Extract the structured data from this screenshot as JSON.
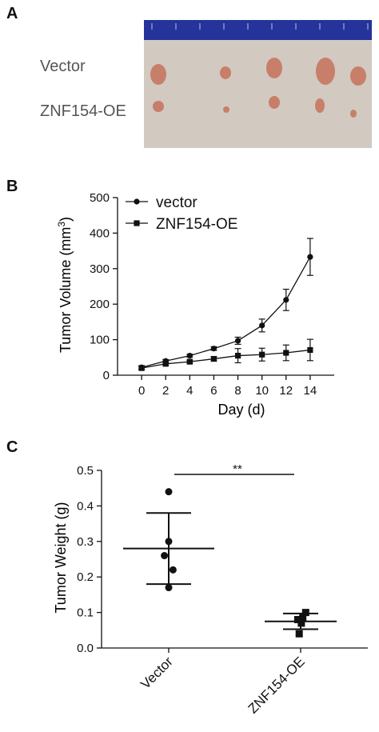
{
  "panels": {
    "a": "A",
    "b": "B",
    "c": "C"
  },
  "photo": {
    "labels": [
      "Vector",
      "ZNF154-OE"
    ]
  },
  "colors": {
    "ink": "#111111",
    "ruler": "#24349a",
    "photo_bg": "#d2c9c1",
    "tumor": "#c77f6a"
  },
  "chart_data": [
    {
      "type": "line",
      "xlabel": "Day (d)",
      "ylabel_base": "Tumor Volume (mm",
      "ylabel_sup": "3",
      "ylabel_end": ")",
      "x": [
        0,
        2,
        4,
        6,
        8,
        10,
        12,
        14
      ],
      "ylim": [
        0,
        500
      ],
      "yticks": [
        0,
        100,
        200,
        300,
        400,
        500
      ],
      "xticks": [
        0,
        2,
        4,
        6,
        8,
        10,
        12,
        14
      ],
      "legend_position": "top-left",
      "series": [
        {
          "name": "vector",
          "marker": "circle",
          "values": [
            22,
            40,
            55,
            75,
            97,
            140,
            212,
            333
          ],
          "errors": [
            5,
            4,
            4,
            5,
            10,
            18,
            30,
            52
          ]
        },
        {
          "name": "ZNF154-OE",
          "marker": "square",
          "values": [
            20,
            32,
            38,
            46,
            55,
            58,
            63,
            71
          ],
          "errors": [
            4,
            4,
            4,
            6,
            20,
            18,
            22,
            30
          ]
        }
      ]
    },
    {
      "type": "scatter",
      "ylabel": "Tumor Weight (g)",
      "categories": [
        "Vector",
        "ZNF154-OE"
      ],
      "ylim": [
        0,
        0.5
      ],
      "yticks": [
        "0.0",
        "0.1",
        "0.2",
        "0.3",
        "0.4",
        "0.5"
      ],
      "groups": [
        {
          "marker": "circle",
          "points": [
            0.44,
            0.3,
            0.26,
            0.22,
            0.17
          ],
          "jitter": [
            0,
            0,
            -0.3,
            0.3,
            0
          ],
          "mean": 0.28,
          "sd": 0.1
        },
        {
          "marker": "square",
          "points": [
            0.1,
            0.085,
            0.08,
            0.07,
            0.04
          ],
          "jitter": [
            0.35,
            0.15,
            -0.2,
            0.05,
            -0.1
          ],
          "mean": 0.075,
          "sd": 0.022
        }
      ],
      "significance": "**"
    }
  ]
}
